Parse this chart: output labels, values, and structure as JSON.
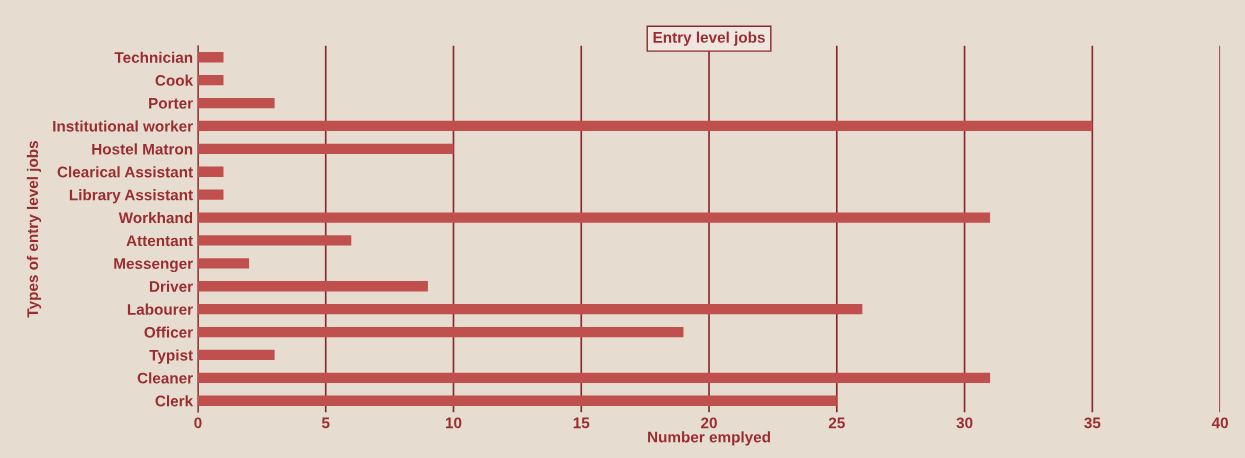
{
  "chart_data": {
    "type": "bar",
    "orientation": "horizontal",
    "title": "Entry level jobs",
    "xlabel": "Number emplyed",
    "ylabel": "Types of entry level jobs",
    "categories": [
      "Technician",
      "Cook",
      "Porter",
      "Institutional worker",
      "Hostel Matron",
      "Clearical Assistant",
      "Library Assistant",
      "Workhand",
      "Attentant",
      "Messenger",
      "Driver",
      "Labourer",
      "Officer",
      "Typist",
      "Cleaner",
      "Clerk"
    ],
    "values": [
      1,
      1,
      3,
      35,
      10,
      1,
      1,
      31,
      6,
      2,
      9,
      26,
      19,
      3,
      31,
      25
    ],
    "color": "#c0504d",
    "xlim": [
      0,
      40
    ],
    "xticks": [
      0,
      5,
      10,
      15,
      20,
      25,
      30,
      35,
      40
    ],
    "grid": "x"
  }
}
